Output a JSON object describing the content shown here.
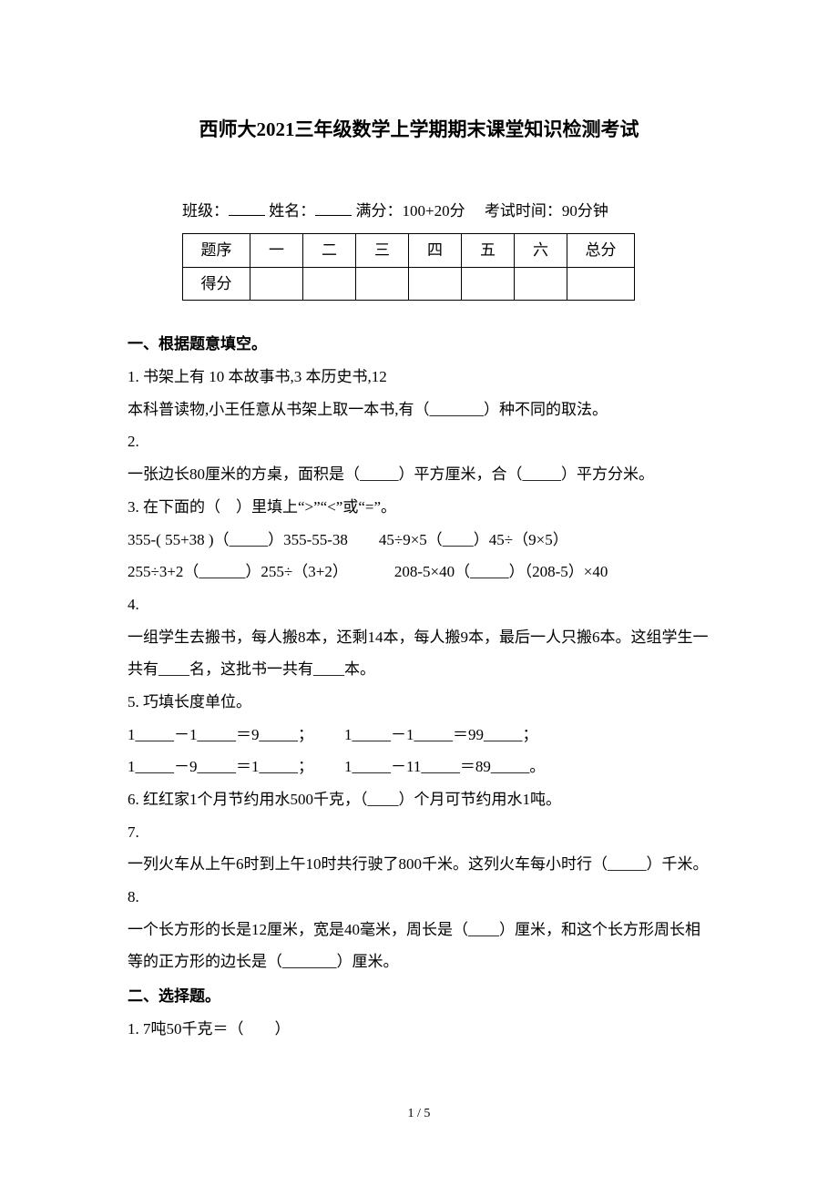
{
  "title": "西师大2021三年级数学上学期期末课堂知识检测考试",
  "info": {
    "class_label": "班级：",
    "name_label": "姓名：",
    "full_score_label": "满分：",
    "full_score_value": "100+20分",
    "time_label": "考试时间：",
    "time_value": "90分钟"
  },
  "score_table": {
    "row1": [
      "题序",
      "一",
      "二",
      "三",
      "四",
      "五",
      "六",
      "总分"
    ],
    "row2_label": "得分"
  },
  "section1_heading": "一、根据题意填空。",
  "q1_a": "1. 书架上有 10 本故事书,3 本历史书,12",
  "q1_b": "本科普读物,小王任意从书架上取一本书,有（_______）种不同的取法。",
  "q2_a": "2.",
  "q2_b": "一张边长80厘米的方桌，面积是（_____）平方厘米，合（_____）平方分米。",
  "q3_a": "3. 在下面的（ ）里填上“>”“<”或“=”。",
  "q3_b": "355-( 55+38 )（_____）355-55-38  45÷9×5（____）45÷（9×5）",
  "q3_c": "255÷3+2（______）255÷（3+2）   208-5×40（_____）（208-5）×40",
  "q4_a": "4.",
  "q4_b": "一组学生去搬书，每人搬8本，还剩14本，每人搬9本，最后一人只搬6本。这组学生一共有____名，这批书一共有____本。",
  "q5_a": "5. 巧填长度单位。",
  "q5_b": "1_____－1_____＝9_____；  1_____－1_____＝99_____；",
  "q5_c": "1_____－9_____＝1_____；  1_____－11_____＝89_____。",
  "q6": "6. 红红家1个月节约用水500千克，（____）个月可节约用水1吨。",
  "q7_a": "7.",
  "q7_b": "一列火车从上午6时到上午10时共行驶了800千米。这列火车每小时行（_____）千米。",
  "q8_a": "8.",
  "q8_b": "一个长方形的长是12厘米，宽是40毫米，周长是（____）厘米，和这个长方形周长相等的正方形的边长是（_______）厘米。",
  "section2_heading": "二、选择题。",
  "s2_q1": "1. 7吨50千克＝（  ）",
  "page_num": "1 / 5"
}
